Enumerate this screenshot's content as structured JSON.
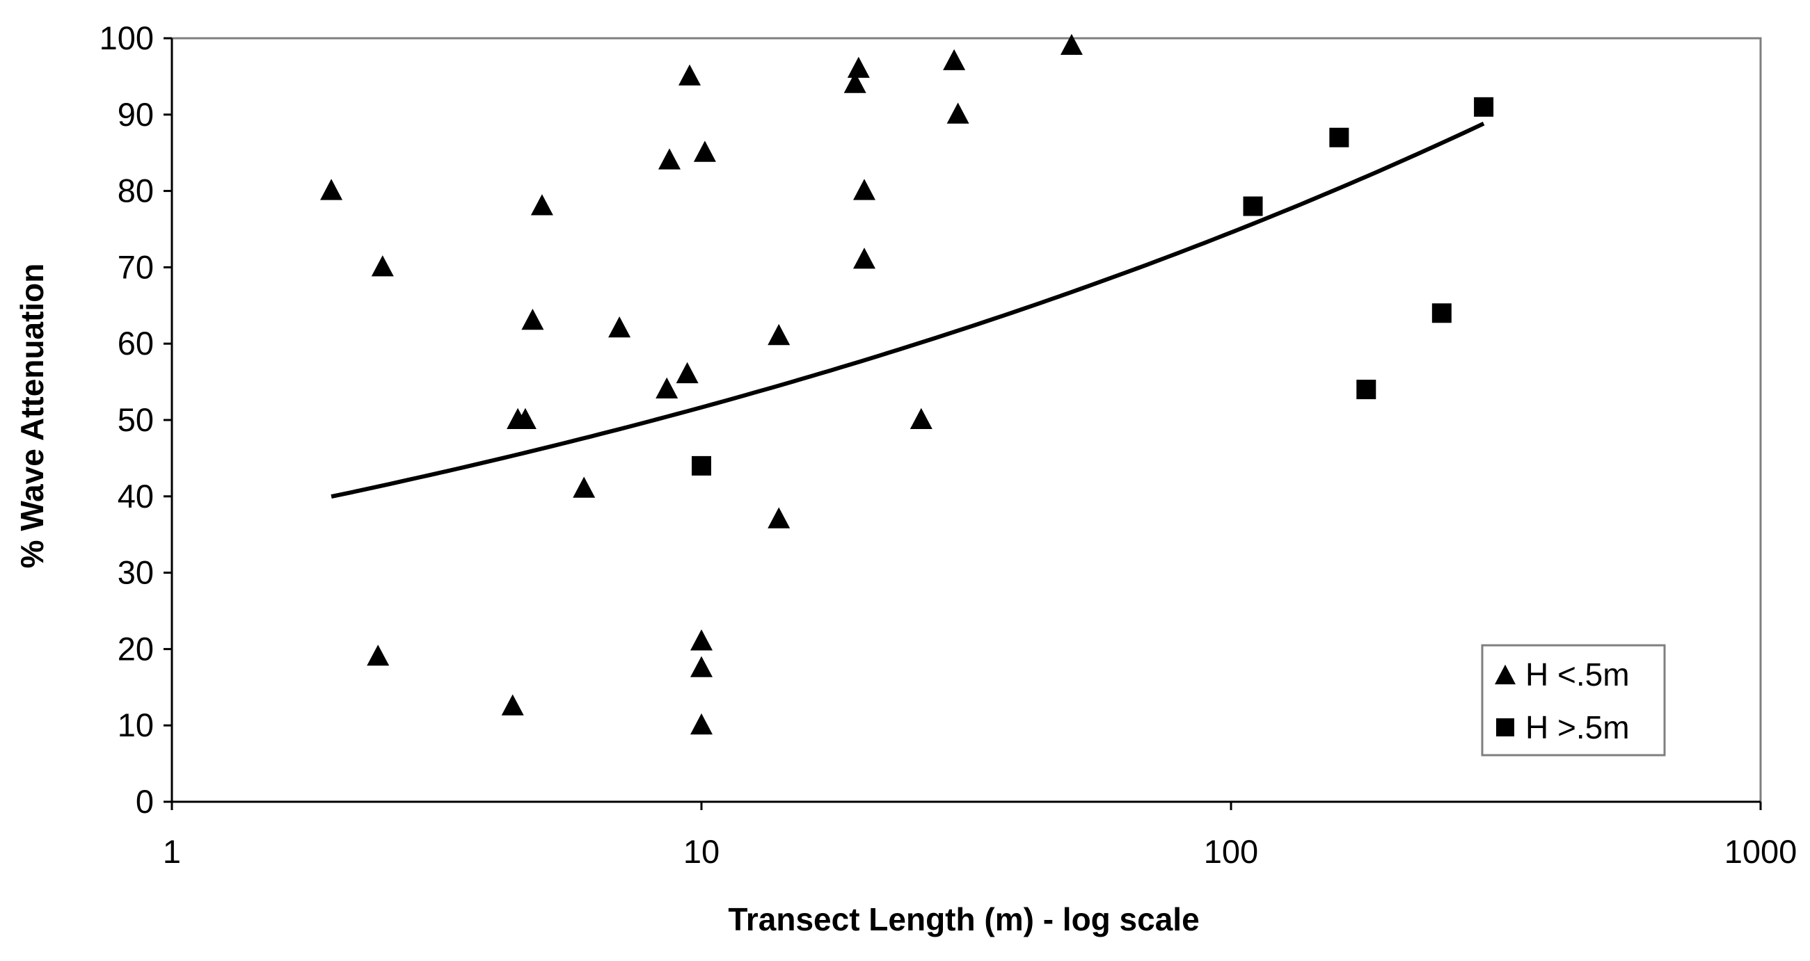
{
  "chart_data": {
    "type": "scatter",
    "title": "",
    "xlabel": "Transect Length (m) - log scale",
    "ylabel": "% Wave Attenuation",
    "xscale": "log",
    "xlim": [
      1,
      1000
    ],
    "ylim": [
      0,
      100
    ],
    "x_ticks": [
      "1",
      "10",
      "100",
      "1000"
    ],
    "y_ticks": [
      "0",
      "10",
      "20",
      "30",
      "40",
      "50",
      "60",
      "70",
      "80",
      "90",
      "100"
    ],
    "grid": false,
    "legend_position": "bottom-right",
    "series": [
      {
        "name": "H <.5m",
        "marker": "triangle",
        "points": [
          [
            2.0,
            80
          ],
          [
            2.5,
            70
          ],
          [
            2.45,
            19
          ],
          [
            4.4,
            12.5
          ],
          [
            4.5,
            50
          ],
          [
            4.65,
            50
          ],
          [
            4.8,
            63
          ],
          [
            5.0,
            78
          ],
          [
            6.0,
            41
          ],
          [
            7.0,
            62
          ],
          [
            8.6,
            54
          ],
          [
            8.7,
            84
          ],
          [
            9.4,
            56
          ],
          [
            9.5,
            95
          ],
          [
            10.0,
            21
          ],
          [
            10.0,
            17.5
          ],
          [
            10.0,
            10
          ],
          [
            10.15,
            85
          ],
          [
            14.0,
            61
          ],
          [
            14.0,
            37
          ],
          [
            19.5,
            94
          ],
          [
            19.8,
            96
          ],
          [
            20.3,
            80
          ],
          [
            20.3,
            71
          ],
          [
            26.0,
            50
          ],
          [
            30.0,
            97
          ],
          [
            30.5,
            90
          ],
          [
            50.0,
            99
          ]
        ]
      },
      {
        "name": "H >.5m",
        "marker": "square",
        "points": [
          [
            10.0,
            44
          ],
          [
            110,
            78
          ],
          [
            160,
            87
          ],
          [
            180,
            54
          ],
          [
            250,
            64
          ],
          [
            300,
            91
          ]
        ]
      }
    ],
    "trendline": {
      "type": "exponential-in-log-x",
      "x_range": [
        2,
        300
      ],
      "points": [
        [
          2,
          40
        ],
        [
          10,
          51.5
        ],
        [
          100,
          75
        ],
        [
          300,
          88.5
        ]
      ]
    }
  }
}
